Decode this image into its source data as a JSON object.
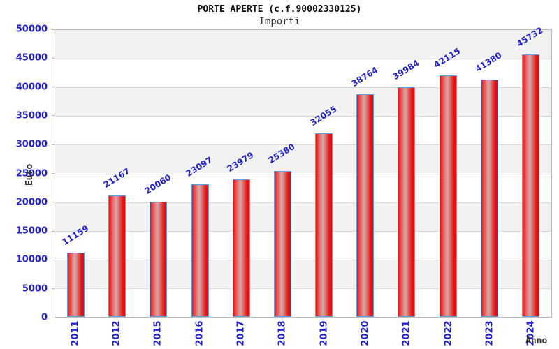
{
  "chart_data": {
    "type": "bar",
    "title": "PORTE APERTE (c.f.90002330125)",
    "subtitle": "Importi",
    "xlabel": "Anno",
    "ylabel": "Euro",
    "categories": [
      "2011",
      "2012",
      "2015",
      "2016",
      "2017",
      "2018",
      "2019",
      "2020",
      "2021",
      "2022",
      "2023",
      "2024"
    ],
    "values": [
      11159,
      21167,
      20060,
      23097,
      23979,
      25380,
      32055,
      38764,
      39984,
      42115,
      41380,
      45732
    ],
    "ylim": [
      0,
      50000
    ],
    "ytick_step": 5000,
    "yticks": [
      0,
      5000,
      10000,
      15000,
      20000,
      25000,
      30000,
      35000,
      40000,
      45000,
      50000
    ],
    "grid": "horizontal-bands-alternating",
    "legend": "none",
    "bar_value_labels_rotated": true,
    "colors": {
      "bar_red": "#e41414",
      "bar_highlight": "#d8a0a0",
      "bar_border": "#58a0e8",
      "label_blue": "#2222cc",
      "band_gray": "#f2f2f2",
      "band_white": "#ffffff",
      "grid_line": "#d9d9d9",
      "plot_border": "#bbbbbb",
      "axis_title_color": "#333333",
      "title_color": "#111111"
    }
  }
}
